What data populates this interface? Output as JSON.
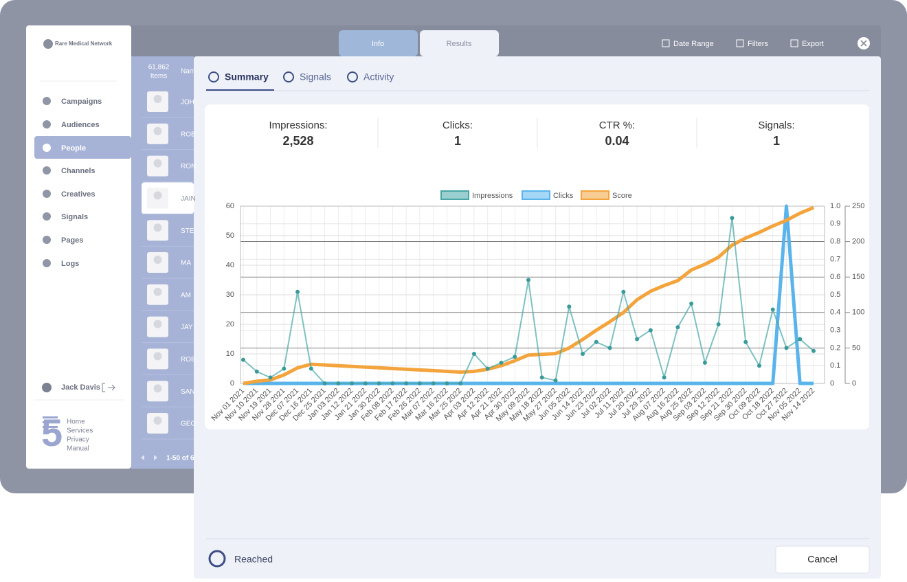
{
  "sidebar": {
    "brand": "Rare Medical Network",
    "nav": [
      "Campaigns",
      "Audiences",
      "People",
      "Channels",
      "Creatives",
      "Signals",
      "Pages",
      "Logs"
    ],
    "user": "Jack Davis",
    "logo": "5",
    "footer_links": [
      "Home",
      "Services",
      "Privacy",
      "Manual"
    ]
  },
  "top_tabs": [
    "Info",
    "Results"
  ],
  "toolbar": [
    "Date Range",
    "Filters",
    "Export"
  ],
  "list": {
    "count": "61,862",
    "count_label": "Items",
    "column": "Nam",
    "names": [
      "JOH",
      "ROB",
      "RON",
      "JAIN",
      "STE",
      "MA",
      "AM",
      "JAY",
      "ROB",
      "SAN",
      "GEO"
    ],
    "pagination": "1-50 of 6"
  },
  "modal": {
    "tabs": [
      "Summary",
      "Signals",
      "Activity"
    ],
    "stats": [
      {
        "label": "Impressions:",
        "value": "2,528"
      },
      {
        "label": "Clicks:",
        "value": 1
      },
      {
        "label": "CTR %:",
        "value": 0.04
      },
      {
        "label": "Signals:",
        "value": 1
      }
    ],
    "footer": {
      "status": "Reached",
      "button": "Cancel"
    }
  },
  "chart_data": {
    "type": "line",
    "categories": [
      "Nov 01 2021",
      "Nov 10 2021",
      "Nov 19 2021",
      "Nov 28 2021",
      "Dec 07 2021",
      "Dec 16 2021",
      "Dec 25 2021",
      "Jan 03 2022",
      "Jan 12 2022",
      "Jan 21 2022",
      "Jan 30 2022",
      "Feb 08 2022",
      "Feb 17 2022",
      "Feb 26 2022",
      "Mar 07 2022",
      "Mar 16 2022",
      "Mar 25 2022",
      "Apr 03 2022",
      "Apr 12 2022",
      "Apr 21 2022",
      "Apr 30 2022",
      "May 09 2022",
      "May 18 2022",
      "May 27 2022",
      "Jun 05 2022",
      "Jun 14 2022",
      "Jun 23 2022",
      "Jul 02 2022",
      "Jul 11 2022",
      "Jul 20 2022",
      "Jul 29 2022",
      "Aug 07 2022",
      "Aug 16 2022",
      "Aug 25 2022",
      "Sep 03 2022",
      "Sep 12 2022",
      "Sep 21 2022",
      "Sep 30 2022",
      "Oct 09 2022",
      "Oct 18 2022",
      "Oct 27 2022",
      "Nov 05 2022",
      "Nov 14 2022"
    ],
    "series": [
      {
        "name": "Impressions",
        "color": "#48a6a6",
        "axis": "y",
        "values": [
          8,
          4,
          2,
          5,
          31,
          5,
          0,
          0,
          0,
          0,
          0,
          0,
          0,
          0,
          0,
          0,
          0,
          10,
          5,
          7,
          9,
          35,
          2,
          1,
          26,
          10,
          14,
          12,
          31,
          15,
          18,
          2,
          19,
          27,
          7,
          20,
          56,
          14,
          6,
          25,
          12,
          15,
          11
        ]
      },
      {
        "name": "Clicks",
        "color": "#5ab4ec",
        "axis": "y2",
        "values": [
          0,
          0,
          0,
          0,
          0,
          0,
          0,
          0,
          0,
          0,
          0,
          0,
          0,
          0,
          0,
          0,
          0,
          0,
          0,
          0,
          0,
          0,
          0,
          0,
          0,
          0,
          0,
          0,
          0,
          0,
          0,
          0,
          0,
          0,
          0,
          0,
          0,
          0,
          0,
          0,
          1,
          0,
          0
        ]
      },
      {
        "name": "Score",
        "color": "#f3a43c",
        "axis": "y3",
        "values": [
          0,
          3,
          5,
          12,
          22,
          27,
          26,
          25,
          24,
          23,
          22,
          21,
          20,
          19,
          18,
          17,
          16,
          17,
          20,
          25,
          32,
          40,
          41,
          42,
          50,
          62,
          75,
          87,
          100,
          118,
          130,
          138,
          145,
          160,
          168,
          178,
          195,
          205,
          213,
          222,
          230,
          240,
          248
        ]
      }
    ],
    "ylim": [
      0,
      60
    ],
    "yticks": [
      0,
      10,
      20,
      30,
      40,
      50,
      60
    ],
    "y2lim": [
      0,
      1
    ],
    "y2ticks": [
      0,
      0.1,
      0.2,
      0.3,
      0.4,
      0.5,
      0.6,
      0.7,
      0.8,
      0.9,
      {
        "value": 1,
        "label": "1.0"
      }
    ],
    "y3lim": [
      0,
      250
    ],
    "y3ticks": [
      0,
      50,
      100,
      150,
      200,
      250
    ],
    "grid": true,
    "legend": "top"
  }
}
